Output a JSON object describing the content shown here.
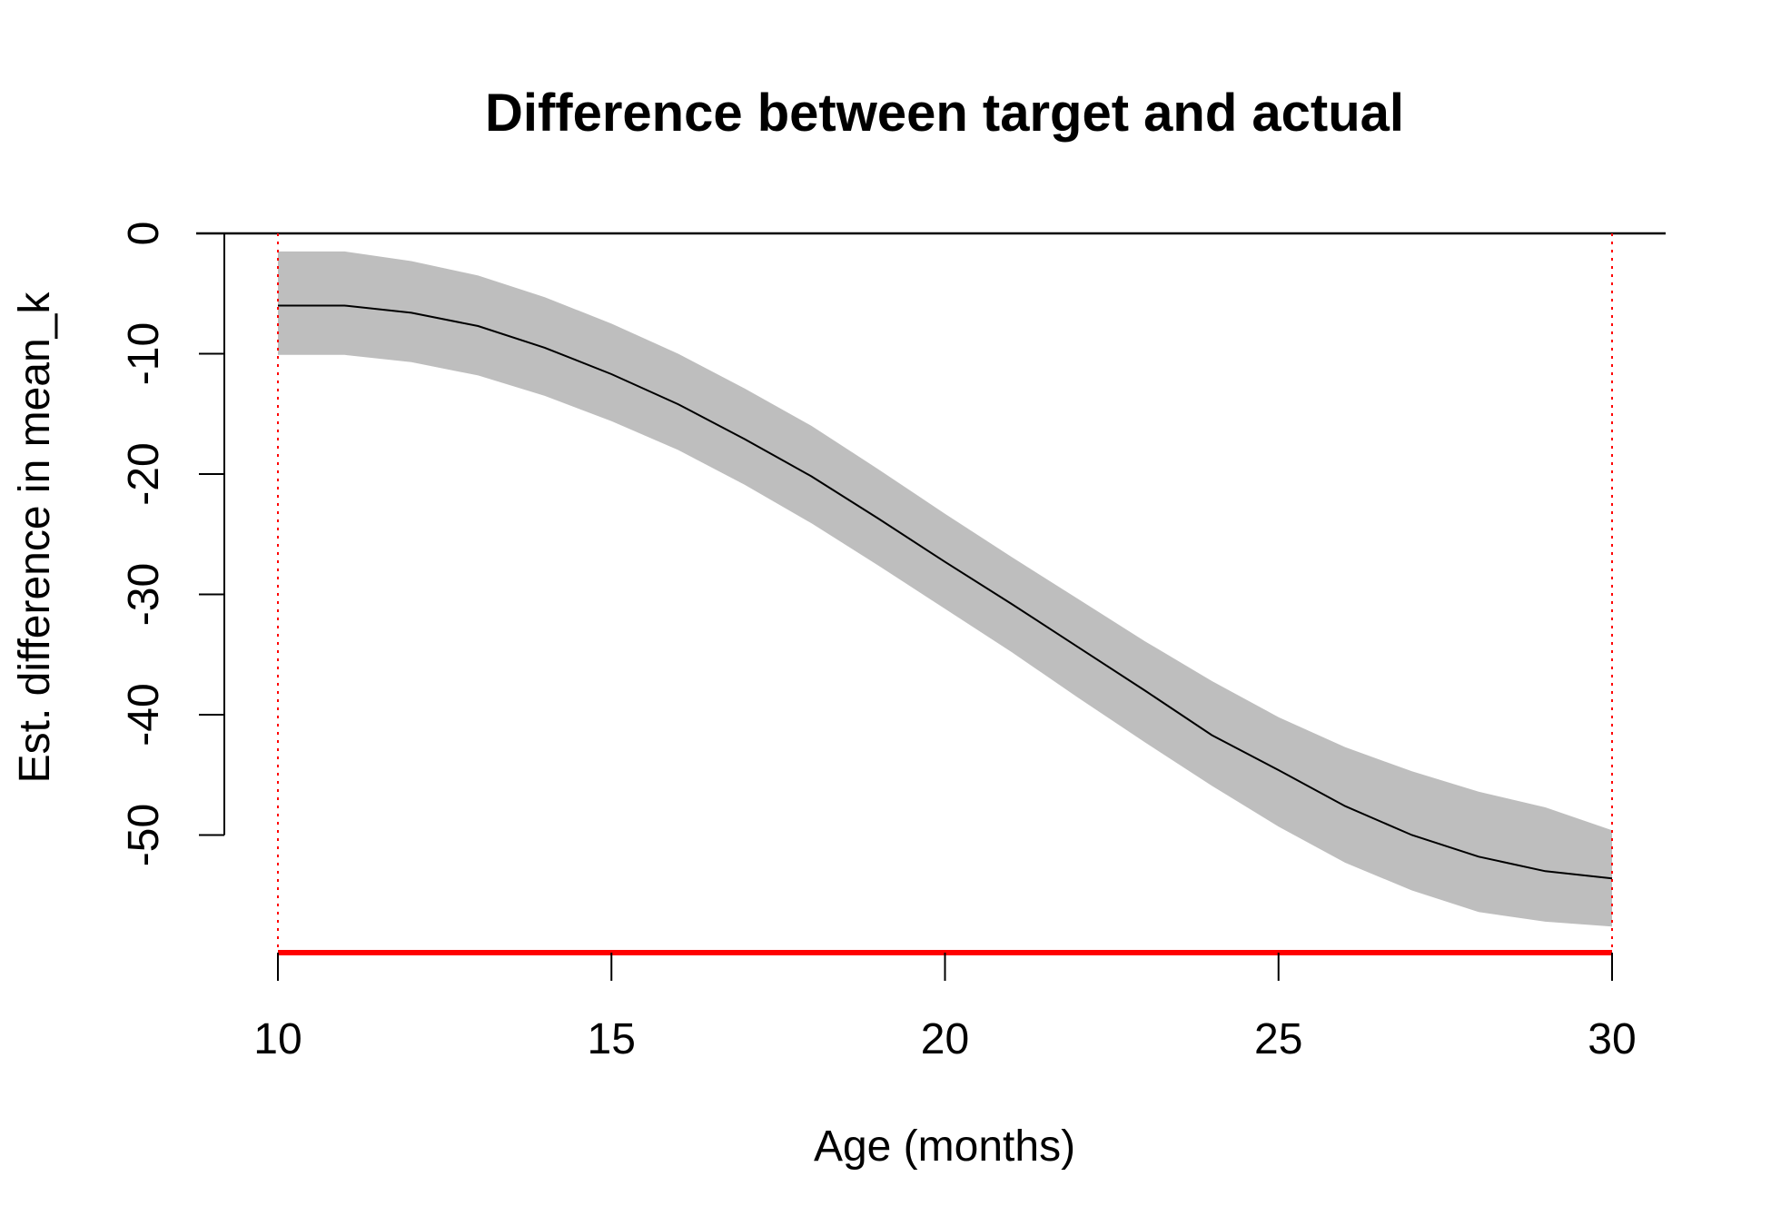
{
  "chart_data": {
    "type": "line",
    "title": "Difference between target and actual",
    "xlabel": "Age (months)",
    "ylabel": "Est. difference in mean_k",
    "xlim": [
      10,
      30
    ],
    "ylim": [
      -60,
      0
    ],
    "xticks": [
      "10",
      "15",
      "20",
      "25",
      "30"
    ],
    "yticks": [
      "0",
      "-10",
      "-20",
      "-30",
      "-40",
      "-50"
    ],
    "grid": false,
    "legend": "none",
    "x": [
      10,
      11,
      12,
      13,
      14,
      15,
      16,
      17,
      18,
      19,
      20,
      21,
      22,
      23,
      24,
      25,
      26,
      27,
      28,
      29,
      30
    ],
    "series": [
      {
        "values": [
          -6.0,
          -6.0,
          -6.6,
          -7.7,
          -9.5,
          -11.7,
          -14.2,
          -17.1,
          -20.2,
          -23.7,
          -27.3,
          -30.8,
          -34.4,
          -38.0,
          -41.7,
          -44.6,
          -47.6,
          -50.0,
          -51.8,
          -53.0,
          -53.6
        ],
        "lower": [
          -10.1,
          -10.1,
          -10.7,
          -11.8,
          -13.5,
          -15.6,
          -18.0,
          -20.9,
          -24.1,
          -27.6,
          -31.2,
          -34.8,
          -38.6,
          -42.3,
          -45.9,
          -49.3,
          -52.3,
          -54.6,
          -56.4,
          -57.2,
          -57.6
        ],
        "upper": [
          -1.5,
          -1.5,
          -2.3,
          -3.5,
          -5.3,
          -7.5,
          -10.0,
          -12.9,
          -16.0,
          -19.6,
          -23.3,
          -26.9,
          -30.4,
          -33.9,
          -37.2,
          -40.2,
          -42.7,
          -44.7,
          -46.4,
          -47.7,
          -49.6
        ],
        "line_color": "#000000",
        "band_color": "#bebebe"
      }
    ],
    "reference_lines": {
      "horizontal_zero_color": "#000000",
      "vertical_color": "#ff0000",
      "vertical_x": [
        10,
        30
      ],
      "range_bar_color": "#ff0000",
      "range_bar_x": [
        10,
        30
      ]
    }
  }
}
